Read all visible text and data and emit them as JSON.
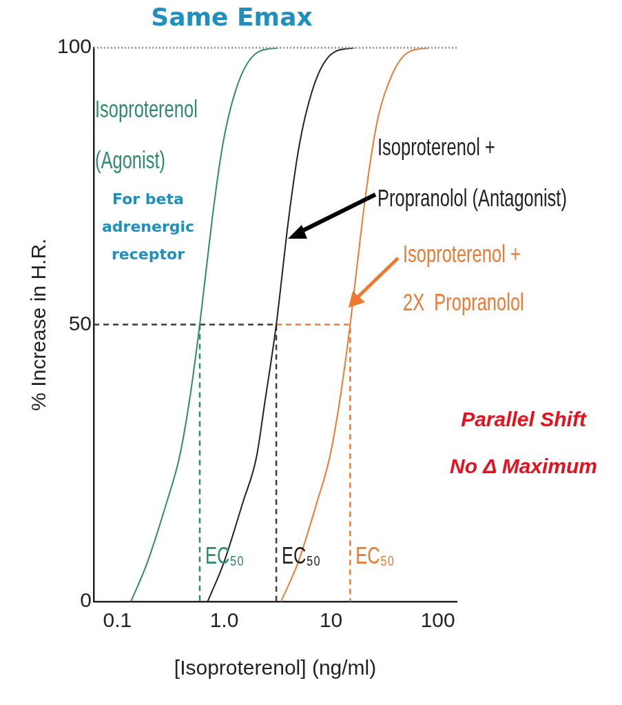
{
  "chart_data": {
    "type": "line",
    "title": "Same Emax",
    "xlabel": "[Isoproterenol] (ng/ml)",
    "ylabel": "% Increase in H.R.",
    "log": "x",
    "xlim": [
      0.06,
      150
    ],
    "xticks": [
      0.1,
      {
        "value": 1,
        "label": "1.0"
      },
      10,
      100
    ],
    "ylim": [
      0,
      100
    ],
    "yticks": [
      0,
      50,
      100
    ],
    "grid": false,
    "legend": "right",
    "marker": "none",
    "line_style": "solid",
    "series": [
      {
        "name": "Isoproterenol\n(Agonist)",
        "color": "#2e8b6a",
        "x": [
          0.134,
          0.19,
          0.29,
          0.38,
          0.47,
          0.59,
          0.77,
          0.94,
          1.11,
          1.44,
          1.99,
          3.2
        ],
        "values": [
          0,
          7,
          18,
          26,
          36,
          50,
          69,
          81,
          88,
          95,
          99,
          100
        ]
      },
      {
        "name": "Isoproterenol +\nPropranolol (Antagonist)",
        "color": "#222222",
        "x": [
          0.7,
          0.99,
          1.5,
          2,
          2.4,
          3.07,
          4,
          4.9,
          5.8,
          7.5,
          10.3,
          16.6
        ],
        "values": [
          0,
          7,
          18,
          26,
          36,
          50,
          69,
          81,
          88,
          95,
          99,
          100
        ]
      },
      {
        "name": "Isoproterenol +\n2X  Propranolol",
        "color": "#f07830",
        "x": [
          3.4,
          4.9,
          7.4,
          9.7,
          12,
          15.1,
          19.7,
          24,
          28,
          37,
          51,
          82
        ],
        "values": [
          0,
          7,
          18,
          26,
          36,
          50,
          69,
          81,
          88,
          95,
          99,
          100
        ]
      },
      {
        "color": "#3a3a30",
        "line_style": "dashed",
        "x": [
          0.06,
          3.07,
          3.07
        ],
        "values": [
          50,
          50,
          0
        ]
      },
      {
        "color": "#2e8b6a",
        "line_style": "dashed",
        "x": [
          0.59,
          0.59
        ],
        "values": [
          50,
          0
        ]
      },
      {
        "color": "#f07830",
        "line_style": "dashed",
        "x": [
          3.07,
          15.1,
          15.1
        ],
        "values": [
          50,
          50,
          0
        ]
      }
    ],
    "ref_lines": [
      {
        "axis": "y",
        "value": 100,
        "color": "#999999",
        "line_style": "dotted"
      }
    ],
    "annotations": [
      "For beta\nadrenergic\nreceptor",
      "Parallel Shift\nNo Δ Maximum",
      {
        "text": "EC₅₀",
        "x": 0.59,
        "y": 0
      },
      {
        "text": "EC₅₀",
        "x": 3.07,
        "y": 0
      },
      {
        "text": "EC₅₀",
        "x": 15.1,
        "y": 0
      }
    ]
  }
}
